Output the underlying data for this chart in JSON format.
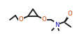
{
  "bg_color": "#ffffff",
  "line_color": "#1a1a1a",
  "o_color": "#cc4400",
  "n_color": "#0000aa",
  "lw": 1.3,
  "figsize": [
    1.17,
    0.75
  ],
  "dpi": 100,
  "xlim": [
    0,
    117
  ],
  "ylim": [
    0,
    75
  ],
  "font_size": 6.0
}
